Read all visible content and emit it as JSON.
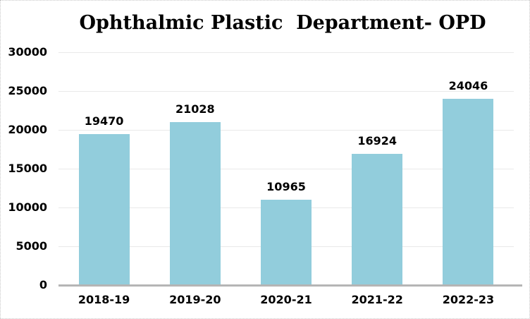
{
  "chart_data": {
    "type": "bar",
    "title": "Ophthalmic Plastic  Department- OPD",
    "categories": [
      "2018-19",
      "2019-20",
      "2020-21",
      "2021-22",
      "2022-23"
    ],
    "values": [
      19470,
      21028,
      10965,
      16924,
      24046
    ],
    "y_ticks": [
      0,
      5000,
      10000,
      15000,
      20000,
      25000,
      30000
    ],
    "ylim": [
      0,
      30000
    ],
    "xlabel": "",
    "ylabel": "",
    "grid": true,
    "data_labels": true,
    "legend_position": "none",
    "colors": {
      "bar": "#92cddc",
      "gridline": "#e9e9e9",
      "axis_line": "#b5b5b5",
      "text": "#000000",
      "frame_border": "#c8c8c8",
      "background": "#ffffff"
    }
  }
}
